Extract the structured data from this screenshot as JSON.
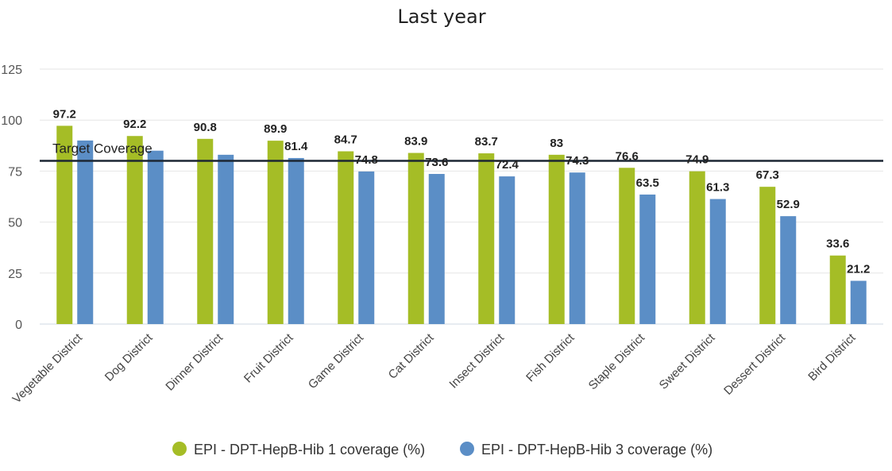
{
  "chart_data": {
    "type": "bar",
    "title": "Last year",
    "categories": [
      "Vegetable District",
      "Dog District",
      "Dinner District",
      "Fruit District",
      "Game District",
      "Cat District",
      "Insect District",
      "Fish District",
      "Staple District",
      "Sweet District",
      "Dessert District",
      "Bird District"
    ],
    "series": [
      {
        "name": "EPI - DPT-HepB-Hib 1 coverage (%)",
        "color": "#a5bd26",
        "values": [
          97.2,
          92.2,
          90.8,
          89.9,
          84.7,
          83.9,
          83.7,
          83,
          76.6,
          74.9,
          67.3,
          33.6
        ],
        "labels": [
          "97.2",
          "92.2",
          "90.8",
          "89.9",
          "84.7",
          "83.9",
          "83.7",
          "83",
          "76.6",
          "74.9",
          "67.3",
          "33.6"
        ]
      },
      {
        "name": "EPI - DPT-HepB-Hib 3 coverage (%)",
        "color": "#5b8ec6",
        "values": [
          90,
          85,
          83,
          81.4,
          74.8,
          73.6,
          72.4,
          74.3,
          63.5,
          61.3,
          52.9,
          21.2
        ],
        "labels": [
          "",
          "",
          "",
          "81.4",
          "74.8",
          "73.6",
          "72.4",
          "74.3",
          "63.5",
          "61.3",
          "52.9",
          "21.2"
        ]
      }
    ],
    "target": {
      "label": "Target Coverage",
      "value": 80
    },
    "ylim": [
      0,
      125
    ],
    "yticks": [
      "0",
      "25",
      "50",
      "75",
      "100",
      "125"
    ],
    "grid": true,
    "legend_position": "bottom"
  }
}
